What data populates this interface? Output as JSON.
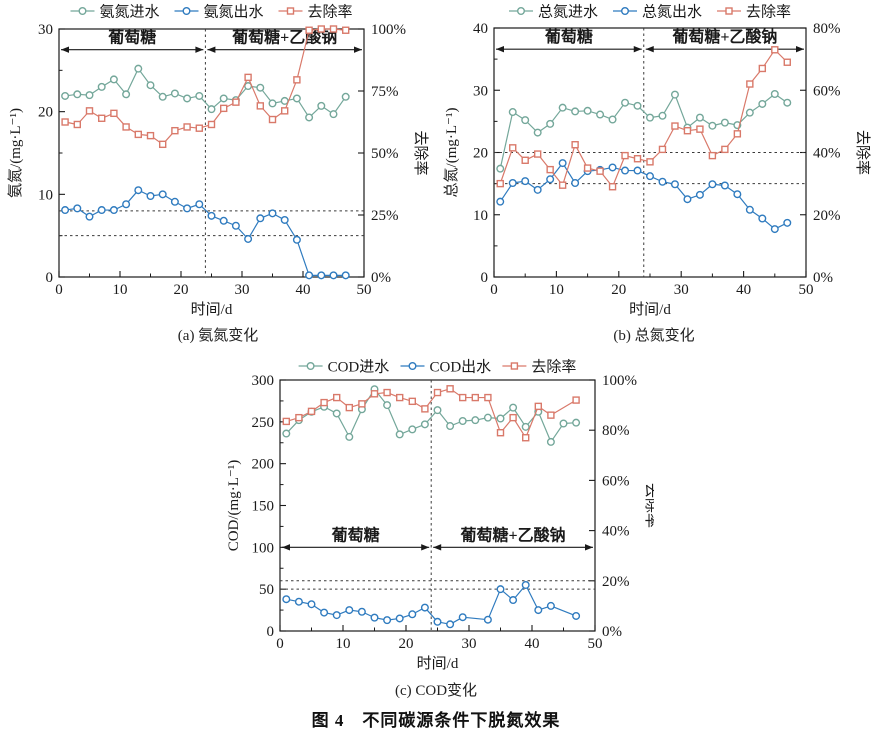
{
  "figure": {
    "caption": "图 4　不同碳源条件下脱氮效果"
  },
  "palette": {
    "inflow": "#74a79a",
    "outflow": "#2f7bbf",
    "removal": "#d9796a",
    "axis": "#1a1a1a",
    "guide": "#3a3a3a"
  },
  "chart_data": [
    {
      "id": "a",
      "type": "line",
      "subtitle": "(a) 氨氮变化",
      "xlabel": "时间/d",
      "ylabel_left": "氨氮/(mg·L⁻¹)",
      "ylabel_right": "去除率",
      "x": {
        "min": 0,
        "max": 50,
        "ticks": [
          0,
          10,
          20,
          30,
          40,
          50
        ],
        "minor": 5
      },
      "left": {
        "min": 0,
        "max": 30,
        "ticks": [
          0,
          10,
          20,
          30
        ],
        "minor": 5
      },
      "right": {
        "min": 0,
        "max": 100,
        "ticks": [
          0,
          25,
          50,
          75,
          100
        ],
        "format": "percent"
      },
      "phase_boundary_x": 24,
      "region_line_y": 27.5,
      "regions": [
        {
          "label": "葡萄糖",
          "from": 0,
          "to": 24
        },
        {
          "label": "葡萄糖+乙酸钠",
          "from": 24,
          "to": 50
        }
      ],
      "guides_left_units": [
        8,
        5
      ],
      "days": [
        1,
        3,
        5,
        7,
        9,
        11,
        13,
        15,
        17,
        19,
        21,
        23,
        25,
        27,
        29,
        31,
        33,
        35,
        37,
        39,
        41,
        43,
        45,
        47
      ],
      "series": [
        {
          "name": "氨氮进水",
          "axis": "left",
          "marker": "circle",
          "color_key": "inflow",
          "values": [
            21.9,
            22.1,
            22.0,
            23.0,
            23.9,
            22.1,
            25.2,
            23.2,
            21.8,
            22.2,
            21.6,
            21.9,
            20.3,
            21.6,
            21.4,
            23.1,
            22.9,
            21.0,
            21.3,
            21.6,
            19.3,
            20.7,
            19.7,
            21.8
          ]
        },
        {
          "name": "氨氮出水",
          "axis": "left",
          "marker": "circle",
          "color_key": "outflow",
          "values": [
            8.1,
            8.3,
            7.3,
            8.1,
            8.1,
            8.8,
            10.5,
            9.8,
            10.0,
            9.1,
            8.3,
            8.8,
            7.4,
            6.8,
            6.2,
            4.6,
            7.1,
            7.7,
            6.9,
            4.5,
            0.2,
            0.2,
            0.2,
            0.2
          ]
        },
        {
          "name": "去除率",
          "axis": "right",
          "marker": "square",
          "color_key": "removal",
          "values": [
            62.5,
            61.5,
            67,
            64,
            66,
            60.5,
            57.5,
            57,
            53.5,
            59,
            60.5,
            60,
            61.5,
            68,
            70.5,
            80.5,
            69,
            63.5,
            67,
            79.5,
            99.5,
            100,
            100,
            99.5
          ]
        }
      ]
    },
    {
      "id": "b",
      "type": "line",
      "subtitle": "(b) 总氮变化",
      "xlabel": "时间/d",
      "ylabel_left": "总氮/(mg·L⁻¹)",
      "ylabel_right": "去除率",
      "x": {
        "min": 0,
        "max": 50,
        "ticks": [
          0,
          10,
          20,
          30,
          40,
          50
        ],
        "minor": 5
      },
      "left": {
        "min": 0,
        "max": 40,
        "ticks": [
          0,
          10,
          20,
          30,
          40
        ],
        "minor": 5
      },
      "right": {
        "min": 0,
        "max": 80,
        "ticks": [
          0,
          20,
          40,
          60,
          80
        ],
        "format": "percent"
      },
      "phase_boundary_x": 24,
      "region_line_y": 36.6,
      "regions": [
        {
          "label": "葡萄糖",
          "from": 0,
          "to": 24
        },
        {
          "label": "葡萄糖+乙酸钠",
          "from": 24,
          "to": 50
        }
      ],
      "guides_left_units": [
        20,
        15
      ],
      "days": [
        1,
        3,
        5,
        7,
        9,
        11,
        13,
        15,
        17,
        19,
        21,
        23,
        25,
        27,
        29,
        31,
        33,
        35,
        37,
        39,
        41,
        43,
        45,
        47
      ],
      "series": [
        {
          "name": "总氮进水",
          "axis": "left",
          "marker": "circle",
          "color_key": "inflow",
          "values": [
            17.4,
            26.5,
            25.2,
            23.2,
            24.6,
            27.2,
            26.6,
            26.7,
            26.1,
            25.3,
            28.0,
            27.5,
            25.6,
            25.9,
            29.3,
            24.0,
            25.6,
            24.3,
            24.8,
            24.4,
            26.4,
            27.8,
            29.4,
            28.0
          ]
        },
        {
          "name": "总氮出水",
          "axis": "left",
          "marker": "circle",
          "color_key": "outflow",
          "values": [
            12.1,
            15.1,
            15.4,
            14.0,
            15.7,
            18.3,
            15.1,
            17.0,
            17.2,
            17.6,
            17.1,
            17.1,
            16.2,
            15.3,
            14.9,
            12.5,
            13.2,
            14.9,
            14.7,
            13.3,
            10.8,
            9.4,
            7.7,
            8.7
          ]
        },
        {
          "name": "去除率",
          "axis": "right",
          "marker": "square",
          "color_key": "removal",
          "values": [
            30,
            41.5,
            37.5,
            39.5,
            34.5,
            29.5,
            42.5,
            35,
            34,
            29,
            39,
            38,
            37,
            41,
            48.5,
            47,
            47.5,
            39,
            41,
            46,
            62,
            67,
            73,
            69
          ]
        }
      ]
    },
    {
      "id": "c",
      "type": "line",
      "subtitle": "(c) COD变化",
      "xlabel": "时间/d",
      "ylabel_left": "COD/(mg·L⁻¹)",
      "ylabel_right": "去除率",
      "x": {
        "min": 0,
        "max": 50,
        "ticks": [
          0,
          10,
          20,
          30,
          40,
          50
        ],
        "minor": 5
      },
      "left": {
        "min": 0,
        "max": 300,
        "ticks": [
          0,
          50,
          100,
          150,
          200,
          250,
          300
        ],
        "minor": 25
      },
      "right": {
        "min": 0,
        "max": 100,
        "ticks": [
          0,
          20,
          40,
          60,
          80,
          100
        ],
        "format": "percent"
      },
      "phase_boundary_x": 24,
      "region_line_y": 100,
      "regions": [
        {
          "label": "葡萄糖",
          "from": 0,
          "to": 24
        },
        {
          "label": "葡萄糖+乙酸钠",
          "from": 24,
          "to": 50
        }
      ],
      "guides_left_units": [
        60,
        50
      ],
      "days": [
        1,
        3,
        5,
        7,
        9,
        11,
        13,
        15,
        17,
        19,
        21,
        23,
        25,
        27,
        29,
        31,
        33,
        35,
        37,
        39,
        41,
        43,
        45,
        47
      ],
      "series": [
        {
          "name": "COD进水",
          "axis": "left",
          "marker": "circle",
          "color_key": "inflow",
          "values": [
            236,
            252,
            262,
            268,
            260,
            232,
            265,
            289,
            270,
            235,
            241,
            247,
            264,
            245,
            251,
            252,
            255,
            254,
            267,
            244,
            262,
            226,
            248,
            249
          ]
        },
        {
          "name": "COD出水",
          "axis": "left",
          "marker": "circle",
          "color_key": "outflow",
          "values": [
            38,
            35,
            32,
            22,
            19,
            25,
            23,
            16,
            13,
            15,
            20,
            28,
            11,
            8,
            16.5,
            null,
            13.5,
            50,
            37,
            55,
            25,
            30,
            null,
            18
          ]
        },
        {
          "name": "去除率",
          "axis": "right",
          "marker": "square",
          "color_key": "removal",
          "values": [
            83.5,
            85,
            87.5,
            91,
            93,
            89,
            90.5,
            94.5,
            95,
            93,
            91.5,
            88.5,
            95,
            96.5,
            93,
            93,
            93,
            79,
            85,
            77,
            89.5,
            86,
            null,
            92
          ]
        }
      ]
    }
  ]
}
